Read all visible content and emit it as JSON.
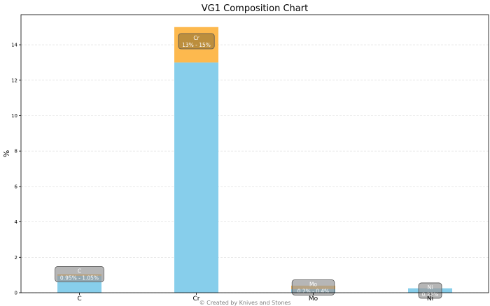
{
  "chart_data": {
    "type": "bar",
    "stacked": true,
    "title": "VG1 Composition Chart",
    "xlabel": "",
    "ylabel": "%",
    "ylim": [
      0,
      15.7
    ],
    "yticks": [
      0,
      2,
      4,
      6,
      8,
      10,
      12,
      14
    ],
    "grid": "horizontal",
    "categories": [
      "C",
      "Cr",
      "Mo",
      "Ni"
    ],
    "series": [
      {
        "color": "#87CEEB",
        "values": [
          0.95,
          13,
          0.2,
          0.25
        ]
      },
      {
        "color": "#FDB94E",
        "values": [
          0.1,
          2,
          0.2,
          0
        ]
      }
    ],
    "annotations": [
      {
        "category": "C",
        "element": "C",
        "range": "0.95% - 1.05%",
        "y": 1.05
      },
      {
        "category": "Cr",
        "element": "Cr",
        "range": "13% - 15%",
        "y": 14.2
      },
      {
        "category": "Mo",
        "element": "Mo",
        "range": "0.2% - 0.4%",
        "y": 0.3
      },
      {
        "category": "Ni",
        "element": "Ni",
        "range": "0.25%",
        "y": 0.12
      }
    ],
    "credit": "© Created by Knives and Stones"
  }
}
